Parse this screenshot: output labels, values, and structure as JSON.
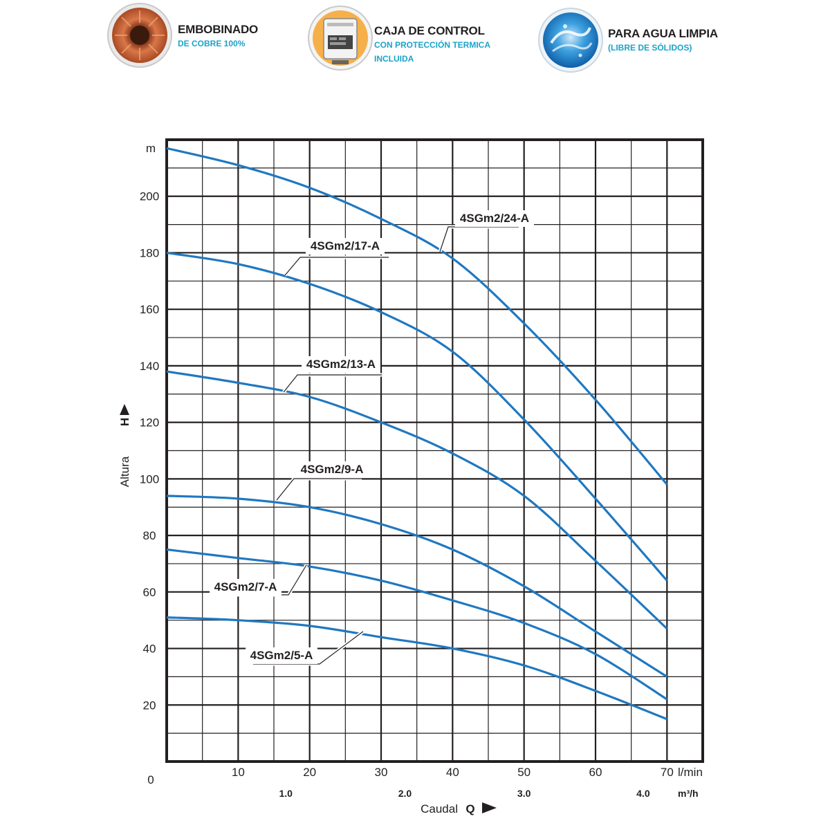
{
  "features": [
    {
      "icon": "copper-winding-icon",
      "title": "EMBOBINADO",
      "subtitle": [
        "DE COBRE 100%"
      ],
      "accent": "#c8643c"
    },
    {
      "icon": "control-box-icon",
      "title": "CAJA DE CONTROL",
      "subtitle": [
        "CON PROTECCIÓN TERMICA",
        "INCLUIDA"
      ],
      "accent": "#f2a33a"
    },
    {
      "icon": "clean-water-icon",
      "title": "PARA AGUA LIMPIA",
      "subtitle": [
        "(LIBRE DE SÓLIDOS)"
      ],
      "accent": "#1e8fd0"
    }
  ],
  "chart_data": {
    "type": "line",
    "y_unit": "m",
    "ylabel": "Altura",
    "ylabel_symbol": "H",
    "xlabel": "Caudal",
    "xlabel_symbol": "Q",
    "x_unit": "l/min",
    "x2_unit": "m³/h",
    "xlim": [
      0,
      75
    ],
    "ylim": [
      0,
      220
    ],
    "x_ticks": [
      10,
      20,
      30,
      40,
      50,
      60,
      70
    ],
    "x2_ticks": [
      "1.0",
      "2.0",
      "3.0",
      "4.0"
    ],
    "y_ticks": [
      20,
      40,
      60,
      80,
      100,
      120,
      140,
      160,
      180,
      200
    ],
    "origin_label": "0",
    "grid": true,
    "line_color": "#1f78c1",
    "series": [
      {
        "name": "4SGm2/24-A",
        "x": [
          0,
          10,
          20,
          30,
          40,
          50,
          60,
          70
        ],
        "y": [
          217,
          211,
          203,
          192,
          178,
          155,
          128,
          98
        ]
      },
      {
        "name": "4SGm2/17-A",
        "x": [
          0,
          10,
          20,
          30,
          40,
          50,
          60,
          70
        ],
        "y": [
          180,
          176,
          169,
          159,
          145,
          121,
          93,
          64
        ]
      },
      {
        "name": "4SGm2/13-A",
        "x": [
          0,
          10,
          20,
          30,
          40,
          50,
          60,
          70
        ],
        "y": [
          138,
          134,
          129,
          120,
          109,
          94,
          71,
          47
        ]
      },
      {
        "name": "4SGm2/9-A",
        "x": [
          0,
          10,
          20,
          30,
          40,
          50,
          60,
          70
        ],
        "y": [
          94,
          93,
          90,
          84,
          75,
          62,
          46,
          30
        ]
      },
      {
        "name": "4SGm2/7-A",
        "x": [
          0,
          10,
          20,
          30,
          40,
          50,
          60,
          70
        ],
        "y": [
          75,
          72,
          69,
          64,
          57,
          49,
          38,
          22
        ]
      },
      {
        "name": "4SGm2/5-A",
        "x": [
          0,
          10,
          20,
          30,
          40,
          50,
          60,
          70
        ],
        "y": [
          51,
          50,
          48,
          44,
          40,
          34,
          25,
          15
        ]
      }
    ]
  }
}
